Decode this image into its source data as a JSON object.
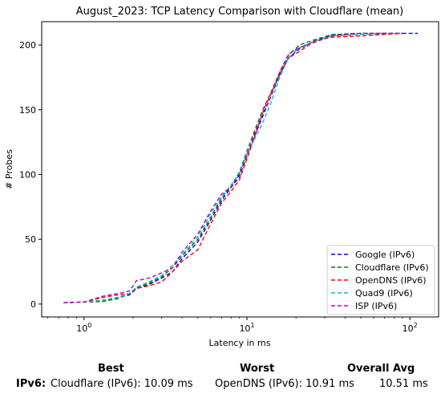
{
  "chart_data": {
    "type": "line",
    "title": "August_2023: TCP Latency Comparison with Cloudflare (mean)",
    "xlabel": "Latency in ms",
    "ylabel": "# Probes",
    "xscale": "log",
    "xlim": [
      0.55,
      150
    ],
    "ylim": [
      -10,
      218
    ],
    "x_ticks": [
      1,
      10,
      100
    ],
    "x_tick_labels": [
      "10^0",
      "10^1",
      "10^2"
    ],
    "y_ticks": [
      0,
      50,
      100,
      150,
      200
    ],
    "y_tick_labels": [
      "0",
      "50",
      "100",
      "150",
      "200"
    ],
    "grid": false,
    "legend_position": "bottom-right",
    "series": [
      {
        "name": "Google (IPv6)",
        "color": "#0000ff",
        "dash": "dashed",
        "points": [
          [
            0.75,
            1
          ],
          [
            1.0,
            1.5
          ],
          [
            1.3,
            2
          ],
          [
            1.6,
            5
          ],
          [
            1.9,
            7
          ],
          [
            2.1,
            12
          ],
          [
            2.5,
            15
          ],
          [
            3.0,
            20
          ],
          [
            3.5,
            25
          ],
          [
            4.0,
            35
          ],
          [
            5.0,
            48
          ],
          [
            6.0,
            65
          ],
          [
            7.0,
            80
          ],
          [
            8.0,
            90
          ],
          [
            9.0,
            100
          ],
          [
            10.0,
            115
          ],
          [
            11.0,
            128
          ],
          [
            12.5,
            145
          ],
          [
            14.0,
            160
          ],
          [
            16.0,
            178
          ],
          [
            18.0,
            190
          ],
          [
            21.0,
            197
          ],
          [
            26.0,
            203
          ],
          [
            33.0,
            208
          ],
          [
            50.0,
            209
          ],
          [
            112.0,
            209
          ]
        ]
      },
      {
        "name": "Cloudflare (IPv6)",
        "color": "#008000",
        "dash": "dashed",
        "points": [
          [
            0.75,
            1
          ],
          [
            1.0,
            1.5
          ],
          [
            1.3,
            2
          ],
          [
            1.6,
            4
          ],
          [
            1.9,
            8
          ],
          [
            2.1,
            13
          ],
          [
            2.5,
            16
          ],
          [
            3.0,
            21
          ],
          [
            3.5,
            28
          ],
          [
            4.0,
            37
          ],
          [
            5.0,
            50
          ],
          [
            6.0,
            67
          ],
          [
            7.0,
            82
          ],
          [
            8.0,
            91
          ],
          [
            9.0,
            102
          ],
          [
            10.0,
            118
          ],
          [
            11.0,
            132
          ],
          [
            12.5,
            150
          ],
          [
            14.0,
            163
          ],
          [
            16.0,
            180
          ],
          [
            18.0,
            192
          ],
          [
            21.0,
            200
          ],
          [
            26.0,
            204
          ],
          [
            33.0,
            208
          ],
          [
            50.0,
            209
          ],
          [
            90.0,
            209
          ]
        ]
      },
      {
        "name": "OpenDNS (IPv6)",
        "color": "#ff0000",
        "dash": "dashed",
        "points": [
          [
            0.75,
            1
          ],
          [
            1.0,
            1.5
          ],
          [
            1.3,
            5
          ],
          [
            1.6,
            7
          ],
          [
            1.9,
            8
          ],
          [
            2.1,
            12
          ],
          [
            2.5,
            14
          ],
          [
            3.0,
            17
          ],
          [
            3.5,
            25
          ],
          [
            4.0,
            33
          ],
          [
            5.0,
            42
          ],
          [
            6.0,
            62
          ],
          [
            7.0,
            78
          ],
          [
            8.0,
            87
          ],
          [
            9.0,
            96
          ],
          [
            10.0,
            112
          ],
          [
            11.0,
            127
          ],
          [
            12.5,
            148
          ],
          [
            14.0,
            162
          ],
          [
            16.0,
            178
          ],
          [
            18.0,
            190
          ],
          [
            21.0,
            195
          ],
          [
            26.0,
            203
          ],
          [
            33.0,
            206
          ],
          [
            50.0,
            207
          ],
          [
            90.0,
            209
          ]
        ]
      },
      {
        "name": "Quad9 (IPv6)",
        "color": "#00bfbf",
        "dash": "dashed",
        "points": [
          [
            0.75,
            1
          ],
          [
            1.0,
            1.5
          ],
          [
            1.3,
            3
          ],
          [
            1.6,
            5
          ],
          [
            1.9,
            8
          ],
          [
            2.1,
            13
          ],
          [
            2.5,
            17
          ],
          [
            3.0,
            22
          ],
          [
            3.5,
            30
          ],
          [
            4.0,
            38
          ],
          [
            5.0,
            52
          ],
          [
            6.0,
            70
          ],
          [
            7.0,
            83
          ],
          [
            8.0,
            92
          ],
          [
            9.0,
            101
          ],
          [
            10.0,
            116
          ],
          [
            11.0,
            126
          ],
          [
            12.5,
            140
          ],
          [
            14.0,
            155
          ],
          [
            16.0,
            176
          ],
          [
            18.0,
            190
          ],
          [
            21.0,
            198
          ],
          [
            26.0,
            203
          ],
          [
            33.0,
            207
          ],
          [
            50.0,
            208
          ],
          [
            70.0,
            209
          ]
        ]
      },
      {
        "name": "ISP (IPv6)",
        "color": "#bf00bf",
        "dash": "dashed",
        "points": [
          [
            0.75,
            1
          ],
          [
            1.0,
            1.5
          ],
          [
            1.3,
            6
          ],
          [
            1.6,
            8
          ],
          [
            1.9,
            10
          ],
          [
            2.1,
            18
          ],
          [
            2.5,
            20
          ],
          [
            3.0,
            24
          ],
          [
            3.5,
            28
          ],
          [
            4.0,
            40
          ],
          [
            5.0,
            54
          ],
          [
            6.0,
            72
          ],
          [
            7.0,
            85
          ],
          [
            8.0,
            90
          ],
          [
            9.0,
            98
          ],
          [
            10.0,
            114
          ],
          [
            11.0,
            130
          ],
          [
            12.5,
            147
          ],
          [
            14.0,
            160
          ],
          [
            16.0,
            180
          ],
          [
            18.0,
            193
          ],
          [
            21.0,
            198
          ],
          [
            26.0,
            202
          ],
          [
            33.0,
            207
          ],
          [
            50.0,
            209
          ],
          [
            90.0,
            209
          ]
        ]
      }
    ]
  },
  "summary": {
    "best_header": "Best",
    "worst_header": "Worst",
    "avg_header": "Overall Avg",
    "row_label": "IPv6:",
    "best_value": "Cloudflare (IPv6): 10.09 ms",
    "worst_value": "OpenDNS (IPv6): 10.91 ms",
    "avg_value": "10.51 ms"
  }
}
